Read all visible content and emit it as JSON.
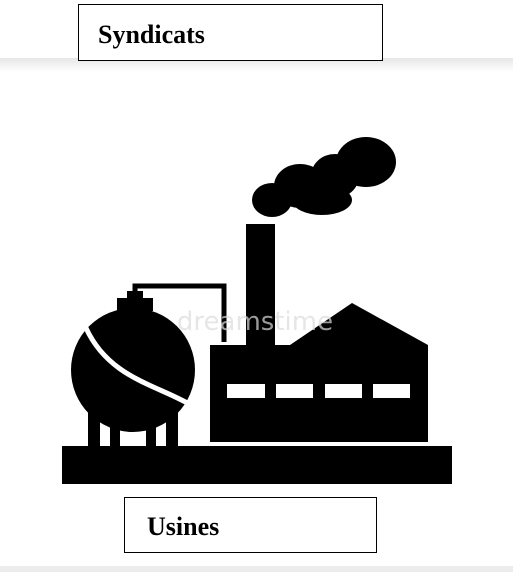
{
  "labels": {
    "top": "Syndicats",
    "bottom": "Usines"
  },
  "watermark": "dreamstime"
}
